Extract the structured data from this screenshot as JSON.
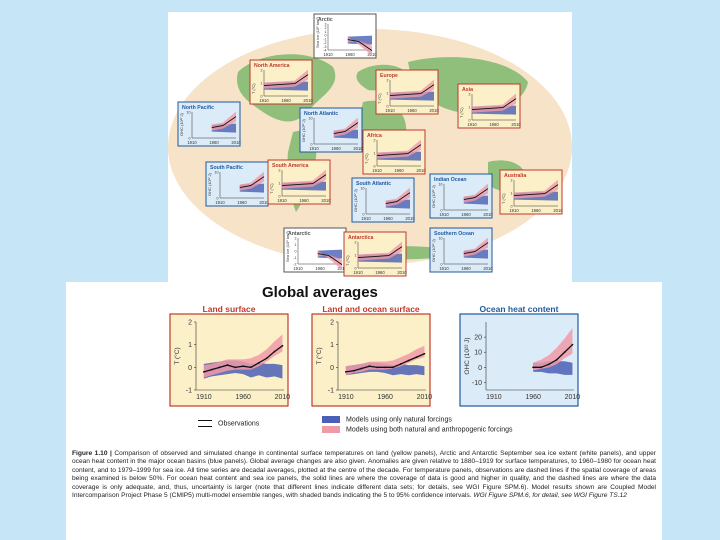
{
  "colors": {
    "background": "#c6e6f8",
    "land_frame": "#c0392b",
    "ocean_frame": "#1f5a9e",
    "natural_band": "#4a5fb5",
    "anthro_band": "#f09aa8",
    "observation": "#111111",
    "map_land": "#8fbf7a",
    "map_sea": "#f6e3c8"
  },
  "regional_panels": [
    {
      "name": "Arctic",
      "ylabel": "Sea ice (10⁶ km²)",
      "kind": "ice",
      "ticks": [
        "1910",
        "1960",
        "2010"
      ],
      "yticks": [
        "3",
        "2",
        "1",
        "0",
        "-1",
        "-2",
        "-3",
        "-4"
      ]
    },
    {
      "name": "North America",
      "ylabel": "T (°C)",
      "kind": "land",
      "ticks": [
        "1910",
        "1960",
        "2010"
      ],
      "yticks": [
        "2",
        "1",
        "0"
      ]
    },
    {
      "name": "Europe",
      "ylabel": "T (°C)",
      "kind": "land",
      "ticks": [
        "1910",
        "1960",
        "2010"
      ],
      "yticks": [
        "2",
        "1",
        "0"
      ]
    },
    {
      "name": "Asia",
      "ylabel": "T (°C)",
      "kind": "land",
      "ticks": [
        "1910",
        "1960",
        "2010"
      ],
      "yticks": [
        "2",
        "1",
        "0"
      ]
    },
    {
      "name": "North Pacific",
      "ylabel": "OHC (10²² J)",
      "kind": "ocean",
      "ticks": [
        "1910",
        "1960",
        "2010"
      ],
      "yticks": [
        "10",
        "0"
      ]
    },
    {
      "name": "North Atlantic",
      "ylabel": "OHC (10²² J)",
      "kind": "ocean",
      "ticks": [
        "1910",
        "1960",
        "2010"
      ],
      "yticks": [
        "10",
        "0"
      ]
    },
    {
      "name": "Africa",
      "ylabel": "T (°C)",
      "kind": "land",
      "ticks": [
        "1910",
        "1960",
        "2010"
      ],
      "yticks": [
        "2",
        "1",
        "0"
      ]
    },
    {
      "name": "South Pacific",
      "ylabel": "OHC (10²² J)",
      "kind": "ocean",
      "ticks": [
        "1910",
        "1960",
        "2010"
      ],
      "yticks": [
        "10",
        "0"
      ]
    },
    {
      "name": "South America",
      "ylabel": "T (°C)",
      "kind": "land",
      "ticks": [
        "1910",
        "1960",
        "2010"
      ],
      "yticks": [
        "2",
        "1",
        "0"
      ]
    },
    {
      "name": "South Atlantic",
      "ylabel": "OHC (10²² J)",
      "kind": "ocean",
      "ticks": [
        "1910",
        "1960",
        "2010"
      ],
      "yticks": [
        "10",
        "0"
      ]
    },
    {
      "name": "Indian Ocean",
      "ylabel": "OHC (10²² J)",
      "kind": "ocean",
      "ticks": [
        "1910",
        "1960",
        "2010"
      ],
      "yticks": [
        "10",
        "0"
      ]
    },
    {
      "name": "Australia",
      "ylabel": "T (°C)",
      "kind": "land",
      "ticks": [
        "1910",
        "1960",
        "2010"
      ],
      "yticks": [
        "2",
        "1",
        "0"
      ]
    },
    {
      "name": "Antarctic",
      "ylabel": "Sea ice (10⁶ km²)",
      "kind": "ice",
      "ticks": [
        "1910",
        "1960",
        "2010"
      ],
      "yticks": [
        "2",
        "1",
        "0",
        "-1",
        "-2"
      ]
    },
    {
      "name": "Antarctica",
      "ylabel": "T (°C)",
      "kind": "land",
      "ticks": [
        "1910",
        "1960",
        "2010"
      ],
      "yticks": [
        "2",
        "1",
        "0"
      ]
    },
    {
      "name": "Southern Ocean",
      "ylabel": "OHC (10²² J)",
      "kind": "ocean",
      "ticks": [
        "1910",
        "1960",
        "2010"
      ],
      "yticks": [
        "10",
        "0"
      ]
    }
  ],
  "global": {
    "title": "Global averages",
    "legend": {
      "observations": "Observations",
      "natural": "Models using only natural forcings",
      "anthro": "Models using both natural and anthropogenic forcings"
    }
  },
  "chart_data": [
    {
      "type": "line",
      "title": "Land surface",
      "xlabel": "",
      "ylabel": "T (°C)",
      "xlim": [
        1900,
        2012
      ],
      "ylim": [
        -1,
        2
      ],
      "xticks": [
        "1910",
        "1960",
        "2010"
      ],
      "yticks": [
        "2",
        "1",
        "0",
        "-1"
      ],
      "x": [
        1910,
        1920,
        1930,
        1940,
        1950,
        1960,
        1970,
        1980,
        1990,
        2000,
        2010
      ],
      "series": [
        {
          "name": "Observations",
          "values": [
            -0.2,
            -0.1,
            0.0,
            0.1,
            0.0,
            0.05,
            0.0,
            0.2,
            0.4,
            0.7,
            0.95
          ]
        },
        {
          "name": "Models using only natural forcings (5–95%)",
          "lower": [
            -0.5,
            -0.4,
            -0.35,
            -0.3,
            -0.25,
            -0.3,
            -0.45,
            -0.35,
            -0.45,
            -0.4,
            -0.5
          ],
          "upper": [
            0.15,
            0.2,
            0.25,
            0.3,
            0.3,
            0.25,
            0.15,
            0.2,
            0.15,
            0.15,
            0.1
          ]
        },
        {
          "name": "Models using both natural and anthropogenic forcings (5–95%)",
          "lower": [
            -0.45,
            -0.35,
            -0.25,
            -0.15,
            -0.1,
            -0.1,
            -0.1,
            0.05,
            0.25,
            0.5,
            0.7
          ],
          "upper": [
            0.1,
            0.15,
            0.25,
            0.35,
            0.35,
            0.35,
            0.4,
            0.55,
            0.8,
            1.15,
            1.45
          ]
        }
      ]
    },
    {
      "type": "line",
      "title": "Land and ocean surface",
      "xlabel": "",
      "ylabel": "T (°C)",
      "xlim": [
        1900,
        2012
      ],
      "ylim": [
        -1,
        2
      ],
      "xticks": [
        "1910",
        "1960",
        "2010"
      ],
      "yticks": [
        "2",
        "1",
        "0",
        "-1"
      ],
      "x": [
        1910,
        1920,
        1930,
        1940,
        1950,
        1960,
        1970,
        1980,
        1990,
        2000,
        2010
      ],
      "series": [
        {
          "name": "Observations",
          "values": [
            -0.2,
            -0.15,
            -0.05,
            0.05,
            0.0,
            0.0,
            0.0,
            0.15,
            0.3,
            0.45,
            0.6
          ]
        },
        {
          "name": "Models using only natural forcings (5–95%)",
          "lower": [
            -0.35,
            -0.3,
            -0.25,
            -0.2,
            -0.2,
            -0.25,
            -0.35,
            -0.3,
            -0.35,
            -0.3,
            -0.35
          ],
          "upper": [
            0.05,
            0.1,
            0.15,
            0.2,
            0.2,
            0.15,
            0.1,
            0.15,
            0.1,
            0.1,
            0.05
          ]
        },
        {
          "name": "Models using both natural and anthropogenic forcings (5–95%)",
          "lower": [
            -0.35,
            -0.25,
            -0.2,
            -0.1,
            -0.1,
            -0.1,
            -0.05,
            0.05,
            0.2,
            0.35,
            0.45
          ],
          "upper": [
            0.05,
            0.1,
            0.15,
            0.25,
            0.25,
            0.25,
            0.3,
            0.45,
            0.6,
            0.8,
            0.95
          ]
        }
      ]
    },
    {
      "type": "line",
      "title": "Ocean heat content",
      "xlabel": "",
      "ylabel": "OHC (10²² J)",
      "xlim": [
        1900,
        2012
      ],
      "ylim": [
        -15,
        30
      ],
      "xticks": [
        "1910",
        "1960",
        "2010"
      ],
      "yticks": [
        "20",
        "10",
        "0",
        "-10"
      ],
      "x": [
        1960,
        1970,
        1980,
        1990,
        2000,
        2010
      ],
      "series": [
        {
          "name": "Observations",
          "values": [
            0,
            0,
            2,
            5,
            10,
            15
          ]
        },
        {
          "name": "Models using only natural forcings (5–95%)",
          "lower": [
            -3,
            -3,
            -4,
            -4,
            -5,
            -5
          ],
          "upper": [
            3,
            3,
            4,
            4,
            4,
            3
          ]
        },
        {
          "name": "Models using both natural and anthropogenic forcings (5–95%)",
          "lower": [
            -2,
            -1,
            0,
            2,
            6,
            9
          ],
          "upper": [
            3,
            5,
            8,
            13,
            19,
            26
          ]
        }
      ]
    }
  ],
  "caption": {
    "label": "Figure 1.10 |",
    "text": "Comparison of observed and simulated change in continental surface temperatures on land (yellow panels), Arctic and Antarctic September sea ice extent (white panels), and upper ocean heat content in the major ocean basins (blue panels). Global average changes are also given. Anomalies are given relative to 1880–1919 for surface temperatures, to 1960–1980 for ocean heat content, and to 1979–1999 for sea ice. All time series are decadal averages, plotted at the centre of the decade. For temperature panels, observations are dashed lines if the spatial coverage of areas being examined is below 50%. For ocean heat content and sea ice panels, the solid lines are where the coverage of data is good and higher in quality, and the dashed lines are where the data coverage is only adequate, and, thus, uncertainty is larger (note that different lines indicate different data sets; for details, see WGI Figure SPM.6). Model results shown are Coupled Model Intercomparison Project Phase 5 (CMIP5) multi-model ensemble ranges, with shaded bands indicating the 5 to 95% confidence intervals.",
    "source": "WGI Figure SPM.6, for detail, see WGI Figure TS.12"
  }
}
